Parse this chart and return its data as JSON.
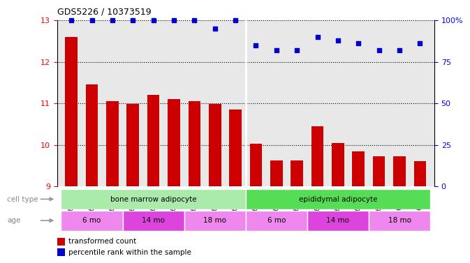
{
  "title": "GDS5226 / 10373519",
  "samples": [
    "GSM635884",
    "GSM635885",
    "GSM635886",
    "GSM635890",
    "GSM635891",
    "GSM635892",
    "GSM635896",
    "GSM635897",
    "GSM635898",
    "GSM635887",
    "GSM635888",
    "GSM635889",
    "GSM635893",
    "GSM635894",
    "GSM635895",
    "GSM635899",
    "GSM635900",
    "GSM635901"
  ],
  "bar_values": [
    12.6,
    11.45,
    11.05,
    10.98,
    11.2,
    11.1,
    11.05,
    10.98,
    10.85,
    10.02,
    9.62,
    9.62,
    10.45,
    10.05,
    9.85,
    9.72,
    9.72,
    9.6
  ],
  "percentile_values": [
    100,
    100,
    100,
    100,
    100,
    100,
    100,
    95,
    100,
    85,
    82,
    82,
    90,
    88,
    86,
    82,
    82,
    86
  ],
  "bar_color": "#cc0000",
  "percentile_color": "#0000cc",
  "ylim_left": [
    9,
    13
  ],
  "ylim_right": [
    0,
    100
  ],
  "yticks_left": [
    9,
    10,
    11,
    12,
    13
  ],
  "yticks_right": [
    0,
    25,
    50,
    75,
    100
  ],
  "cell_type_groups": [
    {
      "label": "bone marrow adipocyte",
      "start": 0,
      "end": 8,
      "color": "#aaeaaa"
    },
    {
      "label": "epididymal adipocyte",
      "start": 9,
      "end": 17,
      "color": "#55dd55"
    }
  ],
  "age_groups": [
    {
      "label": "6 mo",
      "start": 0,
      "end": 2,
      "color": "#ee88ee"
    },
    {
      "label": "14 mo",
      "start": 3,
      "end": 5,
      "color": "#dd44dd"
    },
    {
      "label": "18 mo",
      "start": 6,
      "end": 8,
      "color": "#ee88ee"
    },
    {
      "label": "6 mo",
      "start": 9,
      "end": 11,
      "color": "#ee88ee"
    },
    {
      "label": "14 mo",
      "start": 12,
      "end": 14,
      "color": "#dd44dd"
    },
    {
      "label": "18 mo",
      "start": 15,
      "end": 17,
      "color": "#ee88ee"
    }
  ],
  "legend_bar_label": "transformed count",
  "legend_pct_label": "percentile rank within the sample",
  "cell_type_label": "cell type",
  "age_label": "age",
  "background_color": "#ffffff",
  "plot_bg_color": "#e8e8e8",
  "separator_positions": [
    8.5
  ]
}
